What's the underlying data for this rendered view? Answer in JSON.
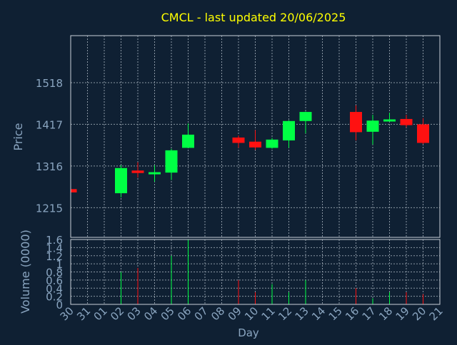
{
  "chart_data": {
    "type": "candlestick",
    "title": "CMCL - last updated 20/06/2025",
    "xlabel": "Day",
    "price_axis": {
      "label": "Price",
      "ticks": [
        "1215",
        "1316",
        "1417",
        "1518"
      ],
      "ylim": [
        1143,
        1632
      ]
    },
    "volume_axis": {
      "label": "Volume (0000)",
      "ticks": [
        "0",
        "0.2",
        "0.4",
        "0.6",
        "0.8",
        "1",
        "1.2",
        "1.4",
        "1.6"
      ],
      "ylim": [
        0,
        1.6
      ]
    },
    "days": [
      "30",
      "31",
      "01",
      "02",
      "03",
      "04",
      "05",
      "06",
      "07",
      "08",
      "09",
      "10",
      "11",
      "12",
      "13",
      "14",
      "15",
      "16",
      "17",
      "18",
      "19",
      "20",
      "21"
    ],
    "candles": [
      {
        "day": "30",
        "open": 1260,
        "high": 1262,
        "low": 1251,
        "close": 1252,
        "volume": 0
      },
      {
        "day": "02",
        "open": 1250,
        "high": 1318,
        "low": 1240,
        "close": 1311,
        "volume": 0.8
      },
      {
        "day": "03",
        "open": 1305,
        "high": 1325,
        "low": 1288,
        "close": 1299,
        "volume": 0.9
      },
      {
        "day": "04",
        "open": 1298,
        "high": 1318,
        "low": 1278,
        "close": 1301,
        "volume": 0
      },
      {
        "day": "05",
        "open": 1300,
        "high": 1358,
        "low": 1282,
        "close": 1354,
        "volume": 1.2
      },
      {
        "day": "06",
        "open": 1360,
        "high": 1419,
        "low": 1360,
        "close": 1392,
        "volume": 1.6
      },
      {
        "day": "09",
        "open": 1385,
        "high": 1390,
        "low": 1360,
        "close": 1372,
        "volume": 0.6
      },
      {
        "day": "10",
        "open": 1375,
        "high": 1403,
        "low": 1355,
        "close": 1361,
        "volume": 0.3
      },
      {
        "day": "11",
        "open": 1360,
        "high": 1384,
        "low": 1358,
        "close": 1380,
        "volume": 0.5
      },
      {
        "day": "12",
        "open": 1378,
        "high": 1427,
        "low": 1360,
        "close": 1425,
        "volume": 0.3
      },
      {
        "day": "13",
        "open": 1425,
        "high": 1448,
        "low": 1395,
        "close": 1447,
        "volume": 0.6
      },
      {
        "day": "16",
        "open": 1447,
        "high": 1463,
        "low": 1378,
        "close": 1398,
        "volume": 0.4
      },
      {
        "day": "17",
        "open": 1399,
        "high": 1440,
        "low": 1368,
        "close": 1426,
        "volume": 0.15
      },
      {
        "day": "18",
        "open": 1425,
        "high": 1445,
        "low": 1425,
        "close": 1429,
        "volume": 0.3
      },
      {
        "day": "19",
        "open": 1430,
        "high": 1440,
        "low": 1410,
        "close": 1415,
        "volume": 0.3
      },
      {
        "day": "20",
        "open": 1417,
        "high": 1432,
        "low": 1369,
        "close": 1372,
        "volume": 0.25
      }
    ],
    "grid": true,
    "colors": {
      "background": "#0f2033",
      "panel_border": "#c8d0d8",
      "grid": "#8a96a3",
      "text": "#8aa5c0",
      "title": "#ffff00",
      "up": "#00ff44",
      "down": "#ff1111"
    }
  }
}
